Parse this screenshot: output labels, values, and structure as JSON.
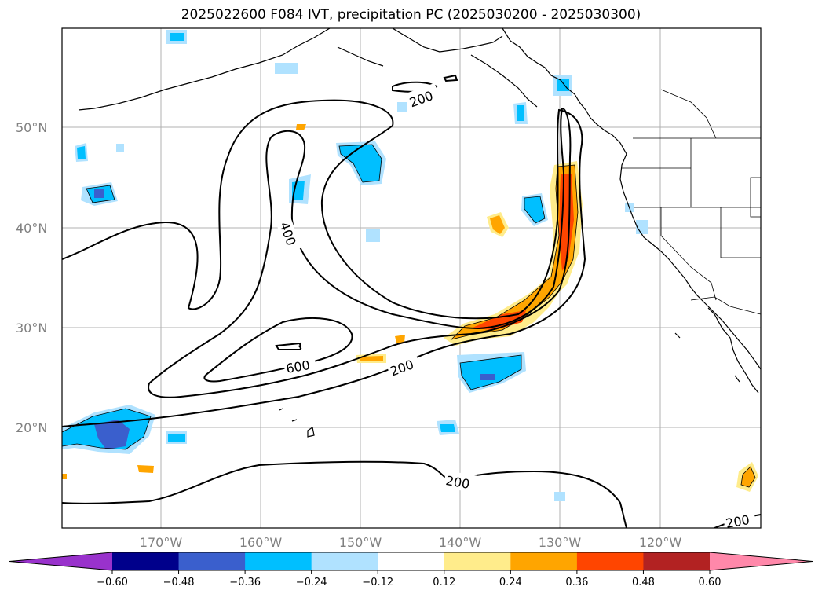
{
  "title": "2025022600 F084 IVT, precipitation PC (2025030200 - 2025030300)",
  "map": {
    "lat_labels": [
      "20°N",
      "30°N",
      "40°N",
      "50°N"
    ],
    "lon_labels": [
      "170°W",
      "160°W",
      "150°W",
      "140°W",
      "130°W",
      "120°W"
    ],
    "contour_labels": [
      "200",
      "400",
      "600",
      "200",
      "200",
      "200"
    ]
  },
  "colorbar": {
    "ticks": [
      "−0.60",
      "−0.48",
      "−0.36",
      "−0.24",
      "−0.12",
      "0.12",
      "0.24",
      "0.36",
      "0.48",
      "0.60"
    ],
    "colors": [
      "#9932cc",
      "#00008b",
      "#3a5fcd",
      "#00bfff",
      "#b0e2ff",
      "#ffffff",
      "#ffec8b",
      "#ffa500",
      "#ff4500",
      "#b22222",
      "#ff88aa"
    ]
  }
}
